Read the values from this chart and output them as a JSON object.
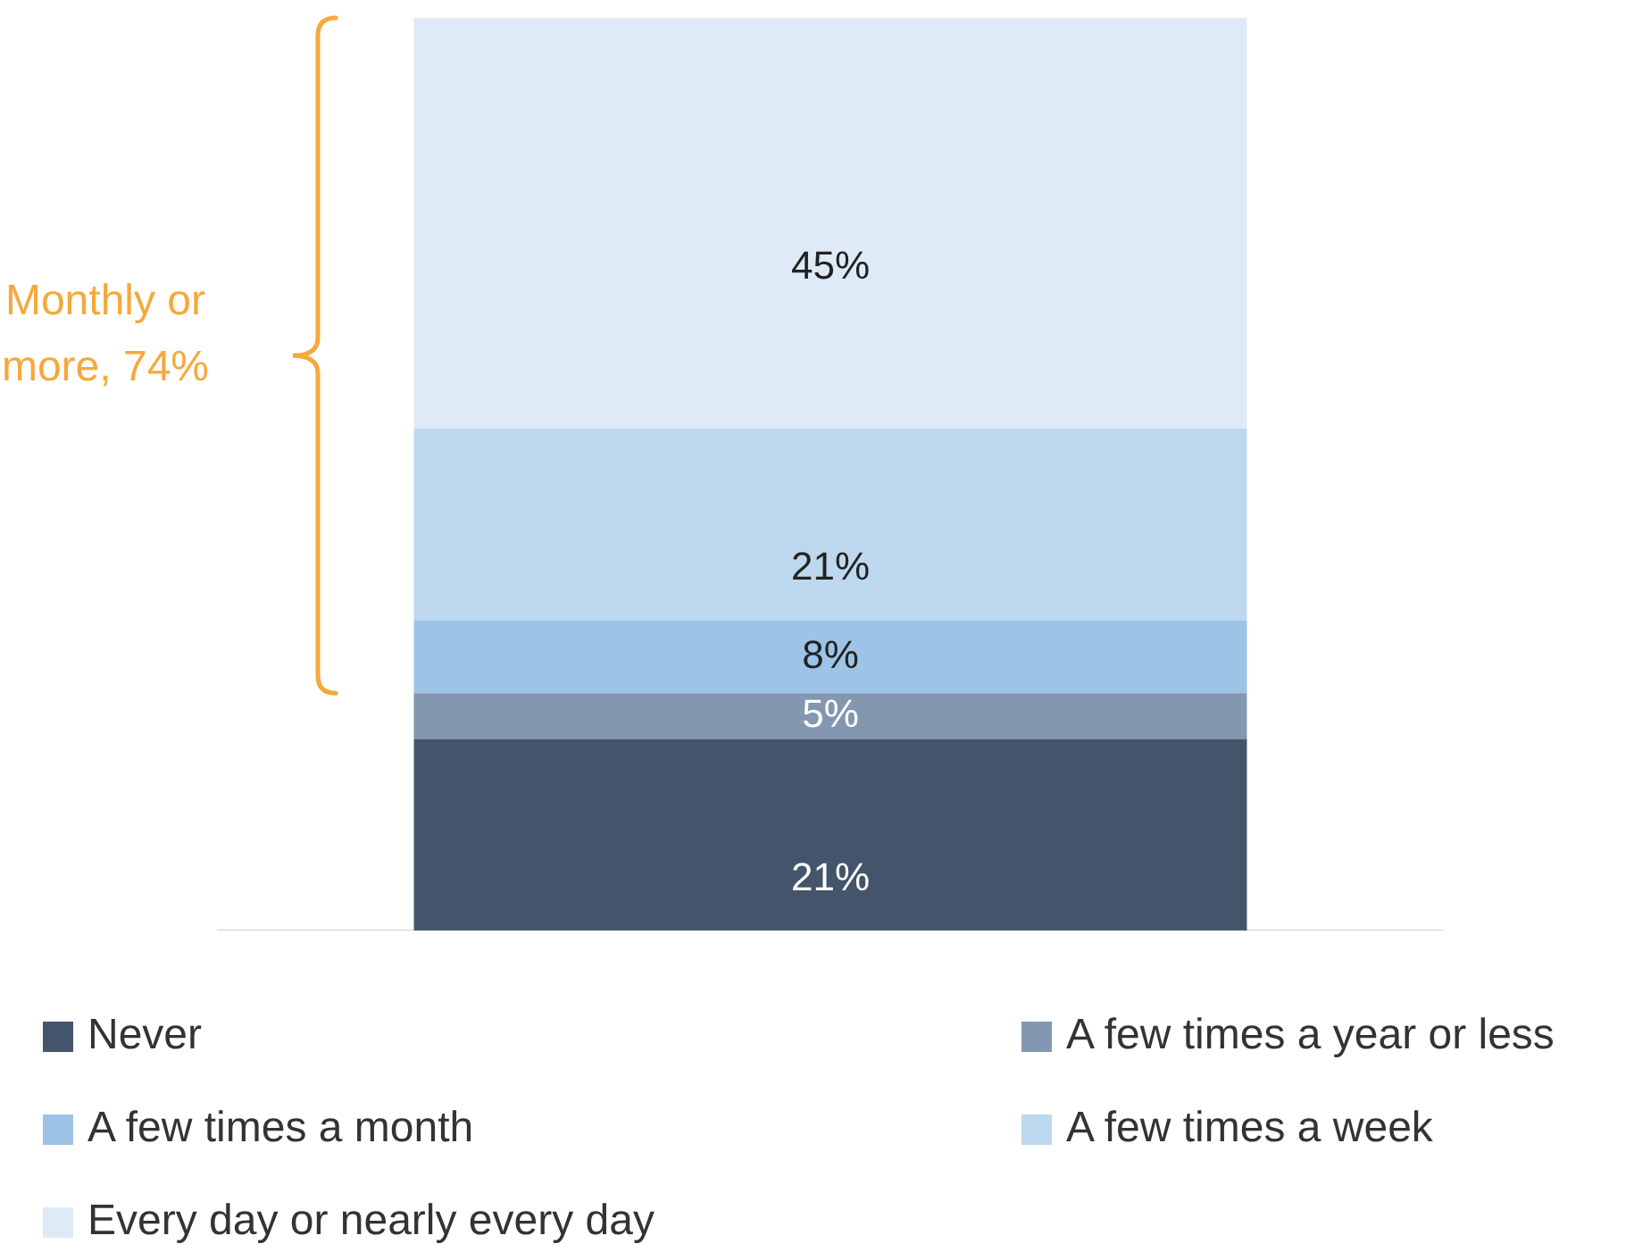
{
  "chart_data": {
    "type": "bar",
    "stacked": true,
    "categories": [
      null
    ],
    "series": [
      {
        "name": "Never",
        "color": "#44546a",
        "values": [
          21
        ],
        "value_labels": [
          "21%"
        ]
      },
      {
        "name": "A few times a year or less",
        "color": "#8497b0",
        "values": [
          5
        ],
        "value_labels": [
          "5%"
        ]
      },
      {
        "name": "A few times a month",
        "color": "#9dc3e6",
        "values": [
          8
        ],
        "value_labels": [
          "8%"
        ]
      },
      {
        "name": "A few times a week",
        "color": "#bdd7ee",
        "values": [
          21
        ],
        "value_labels": [
          "21%"
        ]
      },
      {
        "name": "Every day or nearly every day",
        "color": "#deebf7",
        "values": [
          45
        ],
        "value_labels": [
          "45%"
        ]
      }
    ],
    "annotations": [
      "Monthly or more, 74%"
    ],
    "legend": "bottom"
  }
}
